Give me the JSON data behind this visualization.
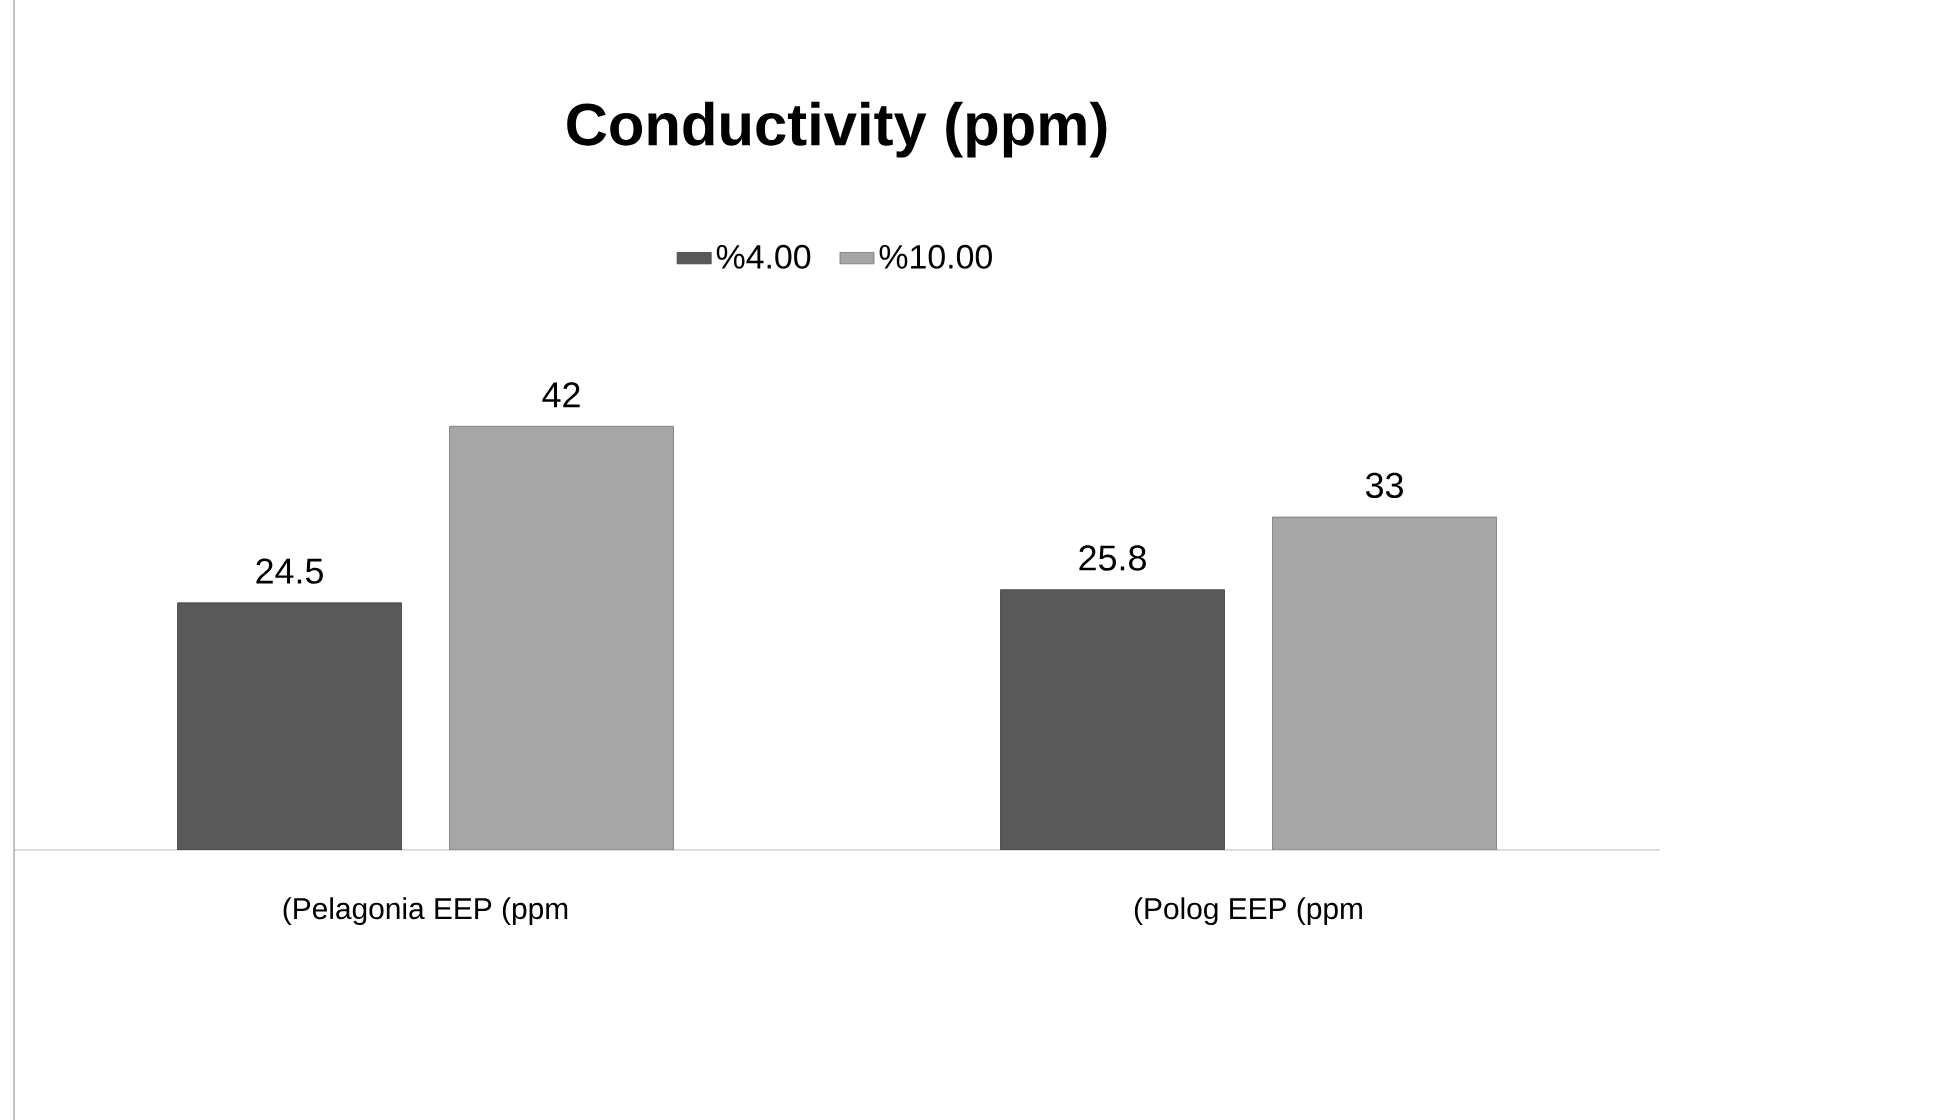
{
  "chart_data": {
    "type": "bar",
    "title": "Conductivity (ppm)",
    "categories": [
      "(Pelagonia EEP (ppm",
      "(Polog EEP (ppm"
    ],
    "series": [
      {
        "name": "%4.00",
        "color": "#595959",
        "values": [
          24.5,
          25.8
        ]
      },
      {
        "name": "%10.00",
        "color": "#a6a6a6",
        "values": [
          42,
          33
        ]
      }
    ],
    "data_labels": true,
    "legend": "top"
  }
}
